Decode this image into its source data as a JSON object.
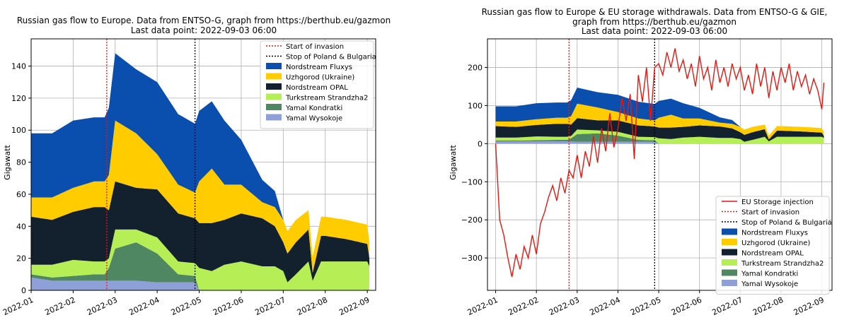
{
  "colors": {
    "nordstream_fluxys": "#0a4fad",
    "uzhgorod": "#ffcc00",
    "nordstream_opal": "#13202d",
    "turkstream": "#b5ee55",
    "yamal_kondratki": "#4f8763",
    "yamal_wysokoje": "#8f9fd8",
    "storage": "#e8170f",
    "invasion": "#e8170f",
    "stop": "#000000",
    "grid": "#b0b0b0"
  },
  "chart_data": [
    {
      "type": "area",
      "title": "Russian gas flow to Europe. Data from ENTSO-G, graph from https://berthub.eu/gazmon",
      "subtitle": "Last data point: 2022-09-03 06:00",
      "xlabel": "",
      "ylabel": "Gigawatt",
      "xlim": [
        0,
        8.2
      ],
      "ylim": [
        0,
        157
      ],
      "yticks": [
        0,
        20,
        40,
        60,
        80,
        100,
        120,
        140
      ],
      "ytick_labels": [
        "0",
        "20",
        "40",
        "60",
        "80",
        "100",
        "120",
        "140"
      ],
      "xtick_positions": [
        0,
        1,
        2,
        3,
        4,
        5,
        6,
        7,
        8
      ],
      "xtick_labels": [
        "2022-01",
        "2022-02",
        "2022-03",
        "2022-04",
        "2022-05",
        "2022-06",
        "2022-07",
        "2022-08",
        "2022-09"
      ],
      "grid": true,
      "legend_position": "top-right",
      "stacked": true,
      "x": [
        0,
        0.5,
        1,
        1.5,
        1.75,
        1.85,
        2,
        2.5,
        3,
        3.5,
        3.9,
        4,
        4.3,
        4.6,
        5,
        5.5,
        5.8,
        6,
        6.1,
        6.3,
        6.6,
        6.7,
        6.9,
        7,
        7.5,
        8,
        8.05
      ],
      "series": [
        {
          "name": "Yamal Wysokoje",
          "values": [
            8,
            6,
            6,
            6,
            6,
            6,
            6,
            6,
            5,
            5,
            5,
            0,
            0,
            0,
            0,
            0,
            0,
            0,
            0,
            0,
            0,
            0,
            0,
            0,
            0,
            0,
            0
          ]
        },
        {
          "name": "Yamal Kondratki",
          "values": [
            2,
            2,
            3,
            4,
            4,
            8,
            20,
            24,
            18,
            5,
            4,
            0,
            0,
            0,
            0,
            0,
            0,
            0,
            0,
            0,
            0,
            0,
            0,
            0,
            0,
            0,
            0
          ]
        },
        {
          "name": "Turkstream Strandzha2",
          "values": [
            6,
            8,
            10,
            8,
            8,
            6,
            12,
            8,
            10,
            8,
            8,
            14,
            12,
            16,
            18,
            15,
            15,
            12,
            5,
            10,
            18,
            6,
            18,
            18,
            18,
            18,
            15
          ]
        },
        {
          "name": "Nordstream OPAL",
          "values": [
            30,
            28,
            30,
            34,
            34,
            30,
            30,
            26,
            30,
            30,
            28,
            28,
            30,
            28,
            30,
            30,
            25,
            18,
            18,
            20,
            20,
            5,
            16,
            16,
            14,
            11,
            5
          ]
        },
        {
          "name": "Uzhgorod (Ukraine)",
          "values": [
            12,
            14,
            15,
            16,
            16,
            22,
            38,
            34,
            22,
            18,
            16,
            26,
            34,
            22,
            18,
            10,
            12,
            14,
            14,
            14,
            12,
            10,
            12,
            12,
            12,
            12,
            10
          ]
        },
        {
          "name": "Nordstream Fluxys",
          "values": [
            40,
            40,
            42,
            40,
            40,
            42,
            42,
            40,
            45,
            44,
            43,
            44,
            42,
            40,
            28,
            14,
            10,
            0,
            0,
            0,
            0,
            0,
            0,
            0,
            0,
            0,
            0
          ]
        }
      ],
      "markers": [
        {
          "name": "Start of invasion",
          "x": 1.8
        },
        {
          "name": "Stop of Poland & Bulgaria",
          "x": 3.9
        }
      ],
      "legend": [
        "Start of invasion",
        "Stop of Poland & Bulgaria",
        "Nordstream Fluxys",
        "Uzhgorod (Ukraine)",
        "Nordstream OPAL",
        "Turkstream Strandzha2",
        "Yamal Kondratki",
        "Yamal Wysokoje"
      ]
    },
    {
      "type": "area",
      "title": "Russian gas flow to Europe & EU storage withdrawals. Data from ENTSO-G & GIE,",
      "title_line2": "graph from https://berthub.eu/gazmon",
      "subtitle": "Last data point: 2022-09-03 06:00",
      "xlabel": "",
      "ylabel": "Gigawatt",
      "xlim": [
        -0.2,
        8.25
      ],
      "ylim": [
        -385,
        275
      ],
      "yticks": [
        -300,
        -200,
        -100,
        0,
        100,
        200
      ],
      "ytick_labels": [
        "−300",
        "−200",
        "−100",
        "0",
        "100",
        "200"
      ],
      "xtick_positions": [
        0,
        1,
        2,
        3,
        4,
        5,
        6,
        7,
        8
      ],
      "xtick_labels": [
        "2022-01",
        "2022-02",
        "2022-03",
        "2022-04",
        "2022-05",
        "2022-06",
        "2022-07",
        "2022-08",
        "2022-09"
      ],
      "grid": true,
      "legend_position": "bottom-right",
      "stacked": true,
      "x": [
        0,
        0.5,
        1,
        1.5,
        1.75,
        1.85,
        2,
        2.5,
        3,
        3.5,
        3.9,
        4,
        4.3,
        4.6,
        5,
        5.5,
        5.8,
        6,
        6.1,
        6.3,
        6.6,
        6.7,
        6.9,
        7,
        7.5,
        8,
        8.05
      ],
      "series": [
        {
          "name": "Yamal Wysokoje",
          "values": [
            6,
            6,
            6,
            6,
            6,
            6,
            5,
            5,
            5,
            5,
            5,
            0,
            0,
            0,
            0,
            0,
            0,
            0,
            0,
            0,
            0,
            0,
            0,
            0,
            0,
            0,
            0
          ]
        },
        {
          "name": "Yamal Kondratki",
          "values": [
            2,
            2,
            3,
            4,
            4,
            8,
            20,
            22,
            16,
            5,
            4,
            0,
            0,
            0,
            0,
            0,
            0,
            0,
            0,
            0,
            0,
            0,
            0,
            0,
            0,
            0,
            0
          ]
        },
        {
          "name": "Turkstream Strandzha2",
          "values": [
            8,
            8,
            10,
            8,
            8,
            6,
            12,
            8,
            10,
            8,
            8,
            14,
            12,
            16,
            18,
            15,
            15,
            12,
            5,
            10,
            18,
            6,
            18,
            18,
            18,
            18,
            15
          ]
        },
        {
          "name": "Nordstream OPAL",
          "values": [
            30,
            28,
            30,
            34,
            34,
            30,
            30,
            26,
            30,
            30,
            28,
            28,
            30,
            28,
            30,
            30,
            25,
            18,
            18,
            20,
            20,
            5,
            16,
            16,
            14,
            11,
            5
          ]
        },
        {
          "name": "Uzhgorod (Ukraine)",
          "values": [
            12,
            14,
            15,
            16,
            16,
            22,
            38,
            34,
            22,
            18,
            16,
            26,
            34,
            22,
            18,
            10,
            12,
            14,
            14,
            14,
            12,
            10,
            12,
            12,
            12,
            12,
            10
          ]
        },
        {
          "name": "Nordstream Fluxys",
          "values": [
            40,
            40,
            42,
            40,
            40,
            42,
            42,
            40,
            45,
            44,
            43,
            44,
            42,
            40,
            28,
            14,
            10,
            0,
            0,
            0,
            0,
            0,
            0,
            0,
            0,
            0,
            0
          ]
        }
      ],
      "storage_series": {
        "name": "EU Storage injection",
        "x": [
          0,
          0.1,
          0.2,
          0.3,
          0.4,
          0.5,
          0.6,
          0.7,
          0.8,
          0.9,
          1.0,
          1.1,
          1.2,
          1.3,
          1.4,
          1.5,
          1.6,
          1.7,
          1.8,
          1.9,
          2.0,
          2.1,
          2.2,
          2.3,
          2.4,
          2.5,
          2.6,
          2.7,
          2.8,
          2.9,
          3.0,
          3.1,
          3.2,
          3.3,
          3.4,
          3.5,
          3.6,
          3.7,
          3.8,
          3.9,
          4.0,
          4.1,
          4.2,
          4.3,
          4.4,
          4.5,
          4.6,
          4.7,
          4.8,
          4.9,
          5.0,
          5.1,
          5.2,
          5.3,
          5.4,
          5.5,
          5.6,
          5.7,
          5.8,
          5.9,
          6.0,
          6.1,
          6.2,
          6.3,
          6.4,
          6.5,
          6.6,
          6.7,
          6.8,
          6.9,
          7.0,
          7.1,
          7.2,
          7.3,
          7.4,
          7.5,
          7.6,
          7.7,
          7.8,
          7.9,
          8.0,
          8.05
        ],
        "values": [
          0,
          -200,
          -240,
          -300,
          -350,
          -290,
          -330,
          -270,
          -300,
          -240,
          -290,
          -210,
          -180,
          -140,
          -110,
          -150,
          -90,
          -130,
          -70,
          -90,
          -30,
          -90,
          -20,
          -60,
          20,
          -50,
          40,
          -20,
          80,
          -10,
          40,
          120,
          60,
          130,
          -40,
          180,
          110,
          200,
          60,
          200,
          210,
          180,
          240,
          200,
          250,
          190,
          220,
          170,
          210,
          150,
          230,
          170,
          200,
          140,
          220,
          160,
          200,
          150,
          210,
          170,
          200,
          140,
          180,
          130,
          210,
          150,
          200,
          120,
          190,
          140,
          200,
          160,
          210,
          140,
          190,
          150,
          180,
          130,
          170,
          140,
          90,
          160
        ]
      },
      "markers": [
        {
          "name": "Start of invasion",
          "x": 1.8
        },
        {
          "name": "Stop of Poland & Bulgaria",
          "x": 3.9
        }
      ],
      "legend": [
        "EU Storage injection",
        "Start of invasion",
        "Stop of Poland & Bulgaria",
        "Nordstream Fluxys",
        "Uzhgorod (Ukraine)",
        "Nordstream OPAL",
        "Turkstream Strandzha2",
        "Yamal Kondratki",
        "Yamal Wysokoje"
      ]
    }
  ]
}
